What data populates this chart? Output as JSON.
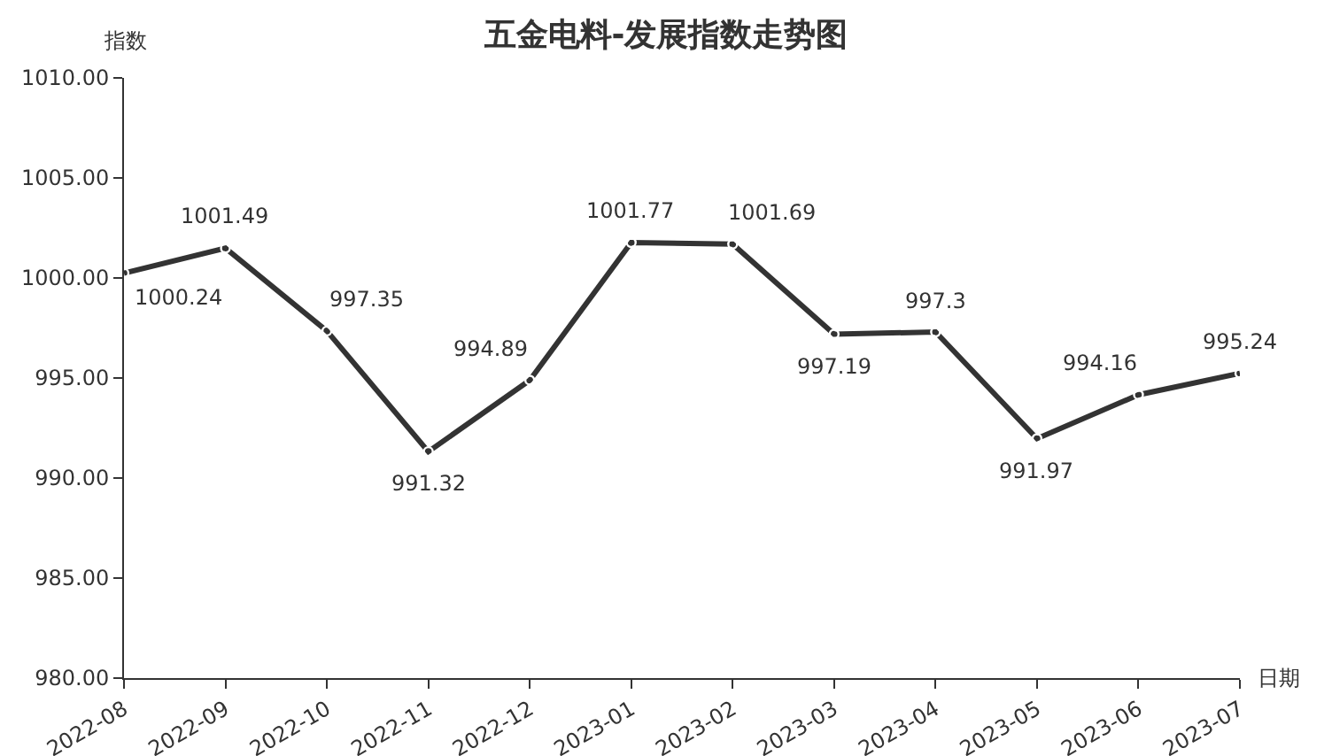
{
  "chart_data": {
    "type": "line",
    "title": "五金电料-发展指数走势图",
    "xlabel": "日期",
    "ylabel": "指数",
    "categories": [
      "2022-08",
      "2022-09",
      "2022-10",
      "2022-11",
      "2022-12",
      "2023-01",
      "2023-02",
      "2023-03",
      "2023-04",
      "2023-05",
      "2023-06",
      "2023-07"
    ],
    "series": [
      {
        "color": "#333333",
        "values": [
          1000.24,
          1001.49,
          997.35,
          991.32,
          994.89,
          1001.77,
          1001.69,
          997.19,
          997.3,
          991.97,
          994.16,
          995.24
        ]
      }
    ],
    "ylim": [
      980,
      1010
    ],
    "yticks": [
      {
        "value": 980,
        "label": "980.00"
      },
      {
        "value": 985,
        "label": "985.00"
      },
      {
        "value": 990,
        "label": "990.00"
      },
      {
        "value": 995,
        "label": "995.00"
      },
      {
        "value": 1000,
        "label": "1000.00"
      },
      {
        "value": 1005,
        "label": "1005.00"
      },
      {
        "value": 1010,
        "label": "1010.00"
      }
    ],
    "data_labels": true,
    "marker": "circle",
    "line_style": "solid"
  }
}
